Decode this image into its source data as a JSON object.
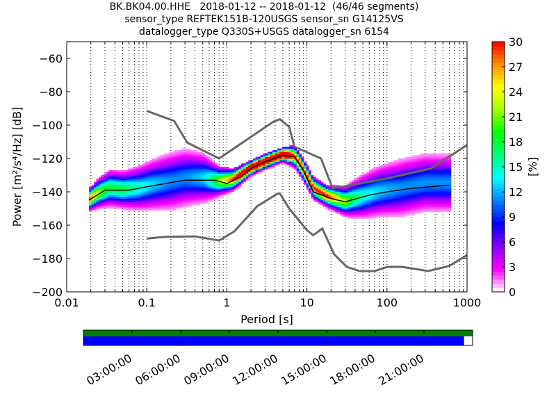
{
  "title": {
    "line1": "BK.BK04.00.HHE   2018-01-12 -- 2018-01-12  (46/46 segments)",
    "line2": "sensor_type REFTEK151B-120USGS sensor_sn G14125VS",
    "line3": "datalogger_type Q330S+USGS datalogger_sn 6154"
  },
  "chart_data": {
    "type": "heatmap",
    "xlabel": "Period [s]",
    "ylabel": "Power [m²/s⁴/Hz] [dB]",
    "xscale": "log",
    "xlim": [
      0.01,
      1000
    ],
    "ylim": [
      -200,
      -50
    ],
    "x_ticks": [
      {
        "value": 0.01,
        "label": "0.01"
      },
      {
        "value": 0.1,
        "label": "0.1"
      },
      {
        "value": 1,
        "label": "1"
      },
      {
        "value": 10,
        "label": "10"
      },
      {
        "value": 100,
        "label": "100"
      },
      {
        "value": 1000,
        "label": "1000"
      }
    ],
    "y_ticks": [
      {
        "value": -60,
        "label": "−60"
      },
      {
        "value": -80,
        "label": "−80"
      },
      {
        "value": -100,
        "label": "−100"
      },
      {
        "value": -120,
        "label": "−120"
      },
      {
        "value": -140,
        "label": "−140"
      },
      {
        "value": -160,
        "label": "−160"
      },
      {
        "value": -180,
        "label": "−180"
      },
      {
        "value": -200,
        "label": "−200"
      }
    ],
    "grid": "dotted vertical lines at log-spaced periods",
    "noise_models": [
      {
        "name": "NHNM",
        "points": [
          [
            0.1,
            -91.5
          ],
          [
            0.22,
            -97.5
          ],
          [
            0.32,
            -110.5
          ],
          [
            0.8,
            -120
          ],
          [
            3.8,
            -98
          ],
          [
            4.6,
            -96.5
          ],
          [
            6,
            -101
          ],
          [
            7,
            -113
          ],
          [
            15,
            -120
          ],
          [
            21,
            -138
          ],
          [
            100,
            -132
          ],
          [
            354,
            -126
          ],
          [
            1000,
            -112
          ]
        ]
      },
      {
        "name": "NLNM",
        "points": [
          [
            0.1,
            -168
          ],
          [
            0.17,
            -167
          ],
          [
            0.4,
            -166.7
          ],
          [
            0.8,
            -169.2
          ],
          [
            1.24,
            -163.7
          ],
          [
            2.4,
            -148.6
          ],
          [
            4.3,
            -141.1
          ],
          [
            4.6,
            -141
          ],
          [
            6,
            -150
          ],
          [
            10,
            -163
          ],
          [
            12,
            -166
          ],
          [
            15.6,
            -162
          ],
          [
            21.9,
            -177.5
          ],
          [
            31.6,
            -185
          ],
          [
            45,
            -187.5
          ],
          [
            70,
            -187.5
          ],
          [
            101,
            -185
          ],
          [
            154,
            -185
          ],
          [
            328,
            -187.5
          ],
          [
            600,
            -184.4
          ],
          [
            1000,
            -178
          ]
        ]
      }
    ],
    "density": [
      {
        "x": 0.019,
        "y_center": -145,
        "spread": 3
      },
      {
        "x": 0.025,
        "y_center": -141,
        "spread": 4
      },
      {
        "x": 0.035,
        "y_center": -138,
        "spread": 5
      },
      {
        "x": 0.05,
        "y_center": -139,
        "spread": 5
      },
      {
        "x": 0.08,
        "y_center": -138,
        "spread": 6
      },
      {
        "x": 0.12,
        "y_center": -136,
        "spread": 7
      },
      {
        "x": 0.2,
        "y_center": -134,
        "spread": 8
      },
      {
        "x": 0.3,
        "y_center": -132,
        "spread": 8
      },
      {
        "x": 0.5,
        "y_center": -132,
        "spread": 7
      },
      {
        "x": 0.8,
        "y_center": -134,
        "spread": 4
      },
      {
        "x": 1.2,
        "y_center": -133,
        "spread": 3
      },
      {
        "x": 2,
        "y_center": -126,
        "spread": 2
      },
      {
        "x": 3,
        "y_center": -122,
        "spread": 2
      },
      {
        "x": 5,
        "y_center": -118,
        "spread": 2
      },
      {
        "x": 7,
        "y_center": -119,
        "spread": 3
      },
      {
        "x": 9,
        "y_center": -127,
        "spread": 3
      },
      {
        "x": 12,
        "y_center": -138,
        "spread": 3
      },
      {
        "x": 18,
        "y_center": -143,
        "spread": 3
      },
      {
        "x": 30,
        "y_center": -146,
        "spread": 4
      },
      {
        "x": 50,
        "y_center": -143,
        "spread": 6
      },
      {
        "x": 80,
        "y_center": -140,
        "spread": 7
      },
      {
        "x": 150,
        "y_center": -138,
        "spread": 8
      },
      {
        "x": 300,
        "y_center": -135,
        "spread": 8
      },
      {
        "x": 600,
        "y_center": -135,
        "spread": 8
      }
    ],
    "mode_line": [
      [
        0.019,
        -145
      ],
      [
        0.03,
        -139
      ],
      [
        0.06,
        -139
      ],
      [
        0.1,
        -137
      ],
      [
        0.3,
        -133
      ],
      [
        0.7,
        -133
      ],
      [
        1,
        -135
      ],
      [
        1.5,
        -131
      ],
      [
        2,
        -126
      ],
      [
        3,
        -122
      ],
      [
        5,
        -118
      ],
      [
        7,
        -119
      ],
      [
        9,
        -127
      ],
      [
        12,
        -140
      ],
      [
        20,
        -144
      ],
      [
        30,
        -146
      ],
      [
        60,
        -142
      ],
      [
        100,
        -140
      ],
      [
        200,
        -138
      ],
      [
        600,
        -136
      ]
    ],
    "colorbar": {
      "label": "[%]",
      "min": 0,
      "max": 30,
      "ticks": [
        "0",
        "3",
        "6",
        "9",
        "12",
        "15",
        "18",
        "21",
        "24",
        "27",
        "30"
      ],
      "colormap": [
        "#ffffff",
        "#ff00ff",
        "#8a00ff",
        "#0000ff",
        "#0080ff",
        "#00ffff",
        "#00ff80",
        "#00ff00",
        "#a0ff00",
        "#ffff00",
        "#ff9000",
        "#ff0000"
      ]
    }
  },
  "timeline": {
    "labels": [
      "03:00:00",
      "06:00:00",
      "09:00:00",
      "12:00:00",
      "15:00:00",
      "18:00:00",
      "21:00:00"
    ],
    "coverage_color": "#0000ff",
    "data_color": "#008000",
    "coverage_fraction": 0.978
  }
}
